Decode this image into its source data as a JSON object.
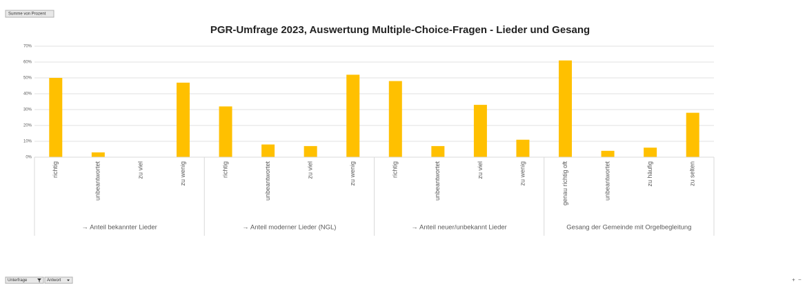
{
  "chart_data": {
    "type": "bar",
    "title": "PGR-Umfrage 2023, Auswertung Multiple-Choice-Fragen - Lieder und Gesang",
    "color": "#ffc000",
    "grid": true,
    "ylim": [
      0,
      70
    ],
    "yticks": [
      {
        "value": 0,
        "label": "0%"
      },
      {
        "value": 10,
        "label": "10%"
      },
      {
        "value": 20,
        "label": "20%"
      },
      {
        "value": 30,
        "label": "30%"
      },
      {
        "value": 40,
        "label": "40%"
      },
      {
        "value": 50,
        "label": "50%"
      },
      {
        "value": 60,
        "label": "60%"
      },
      {
        "value": 70,
        "label": "70%"
      }
    ],
    "groups": [
      {
        "label": "→ Anteil bekannter Lieder",
        "categories": [
          "richtig",
          "unbeantwortet",
          "zu viel",
          "zu wenig"
        ],
        "values": [
          50,
          3,
          0,
          47
        ]
      },
      {
        "label": "→ Anteil moderner Lieder (NGL)",
        "categories": [
          "richtig",
          "unbeantwortet",
          "zu viel",
          "zu wenig"
        ],
        "values": [
          32,
          8,
          7,
          52
        ]
      },
      {
        "label": "→ Anteil neuer/unbekannt Lieder",
        "categories": [
          "richtig",
          "unbeantwortet",
          "zu viel",
          "zu wenig"
        ],
        "values": [
          48,
          7,
          33,
          11
        ]
      },
      {
        "label": "Gesang der Gemeinde mit Orgelbegleitung",
        "categories": [
          "genau richtig oft",
          "unbeantwortet",
          "zu häufig",
          "zu selten"
        ],
        "values": [
          61,
          4,
          6,
          28
        ]
      }
    ]
  },
  "buttons": {
    "value_field": "Summe von Prozent",
    "row_fields": [
      "Unterfrage",
      "Antwort"
    ],
    "zoom": [
      "+",
      "−"
    ]
  }
}
